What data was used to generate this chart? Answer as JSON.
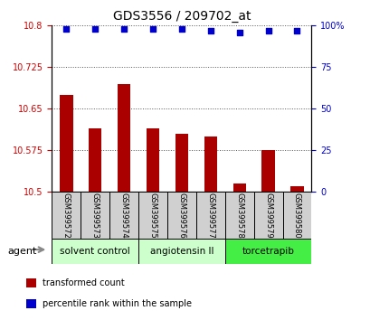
{
  "title": "GDS3556 / 209702_at",
  "samples": [
    "GSM399572",
    "GSM399573",
    "GSM399574",
    "GSM399575",
    "GSM399576",
    "GSM399577",
    "GSM399578",
    "GSM399579",
    "GSM399580"
  ],
  "bar_values": [
    10.675,
    10.615,
    10.695,
    10.615,
    10.605,
    10.6,
    10.515,
    10.575,
    10.51
  ],
  "percentile_values": [
    98,
    98,
    98,
    98,
    98,
    97,
    96,
    97,
    97
  ],
  "ylim_left": [
    10.5,
    10.8
  ],
  "ylim_right": [
    0,
    100
  ],
  "yticks_left": [
    10.5,
    10.575,
    10.65,
    10.725,
    10.8
  ],
  "ytick_labels_left": [
    "10.5",
    "10.575",
    "10.65",
    "10.725",
    "10.8"
  ],
  "yticks_right": [
    0,
    25,
    50,
    75,
    100
  ],
  "ytick_labels_right": [
    "0",
    "25",
    "50",
    "75",
    "100%"
  ],
  "bar_color": "#aa0000",
  "dot_color": "#0000cc",
  "agent_groups": [
    {
      "label": "solvent control",
      "start": 0,
      "end": 3,
      "color": "#ccffcc"
    },
    {
      "label": "angiotensin II",
      "start": 3,
      "end": 6,
      "color": "#ccffcc"
    },
    {
      "label": "torcetrapib",
      "start": 6,
      "end": 9,
      "color": "#44ee44"
    }
  ],
  "legend_items": [
    {
      "label": "transformed count",
      "color": "#aa0000"
    },
    {
      "label": "percentile rank within the sample",
      "color": "#0000cc"
    }
  ],
  "agent_label": "agent",
  "grid_color": "#555555",
  "tick_color_left": "#cc0000",
  "tick_color_right": "#0000cc",
  "sample_box_color": "#d0d0d0"
}
